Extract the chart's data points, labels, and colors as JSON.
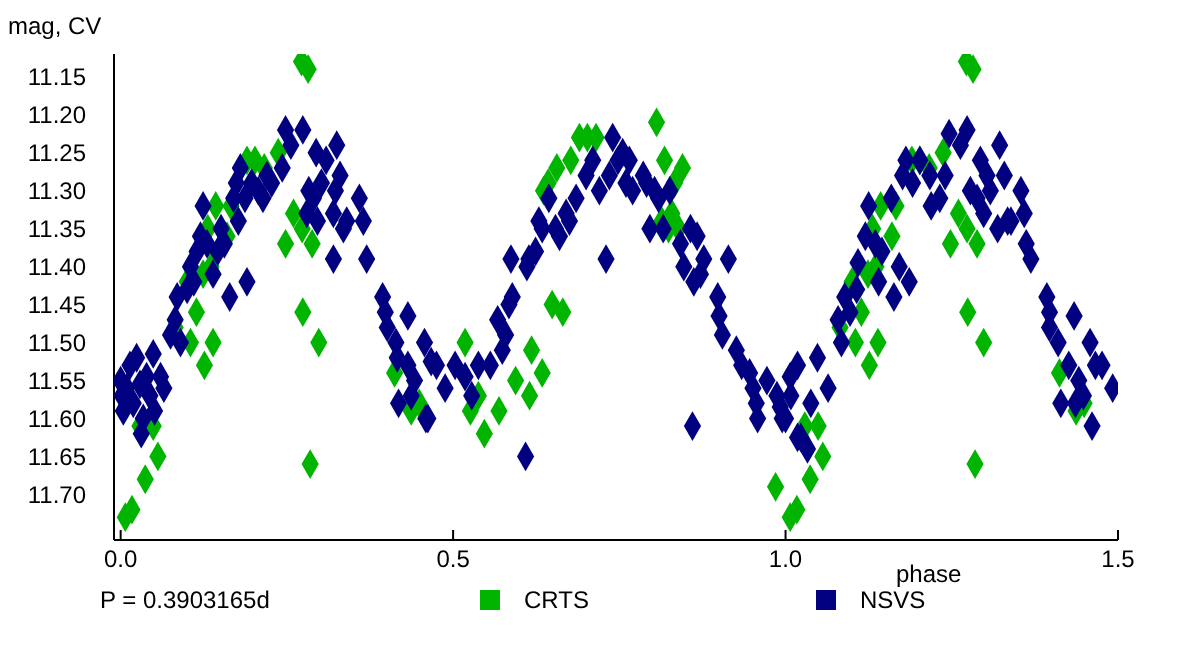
{
  "chart_data": {
    "type": "scatter",
    "xlabel": "phase",
    "ylabel": "mag, CV",
    "annotations": [
      "P = 0.3903165d"
    ],
    "xlim": [
      -0.01,
      1.5
    ],
    "xticks": [
      {
        "value": 0,
        "label": "0.0"
      },
      {
        "value": 0.5,
        "label": "0.5"
      },
      {
        "value": 1,
        "label": "1.0"
      },
      {
        "value": 1.5,
        "label": "1.5"
      }
    ],
    "ylim": [
      11.76,
      11.12
    ],
    "yticks": [
      11.15,
      {
        "value": 11.2,
        "label": "11.20"
      },
      11.25,
      {
        "value": 11.3,
        "label": "11.30"
      },
      11.35,
      {
        "value": 11.4,
        "label": "11.40"
      },
      11.45,
      {
        "value": 11.5,
        "label": "11.50"
      },
      11.55,
      {
        "value": 11.6,
        "label": "11.60"
      },
      11.65,
      {
        "value": 11.7,
        "label": "11.70"
      }
    ],
    "grid": false,
    "legend": "bottom",
    "marker": "diamond",
    "series": [
      {
        "name": "CRTS",
        "color": "#00b400",
        "x": [
          0.007,
          0.017,
          0.029,
          0.037,
          0.049,
          0.056,
          0.082,
          0.1,
          0.105,
          0.114,
          0.126,
          0.124,
          0.131,
          0.136,
          0.139,
          0.143,
          0.16,
          0.166,
          0.19,
          0.202,
          0.216,
          0.237,
          0.248,
          0.26,
          0.272,
          0.282,
          0.273,
          0.274,
          0.285,
          0.288,
          0.298,
          0.412,
          0.437,
          0.449,
          0.518,
          0.538,
          0.526,
          0.547,
          0.569,
          0.594,
          0.615,
          0.618,
          0.634,
          0.649,
          0.665,
          0.636,
          0.643,
          0.656,
          0.677,
          0.69,
          0.702,
          0.715,
          0.806,
          0.818,
          0.833,
          0.845,
          0.829,
          0.814,
          0.824,
          0.839,
          0.985,
          1.007,
          1.017,
          1.029,
          1.037,
          1.049,
          1.056,
          1.082,
          1.1,
          1.105,
          1.114,
          1.126,
          1.124,
          1.131,
          1.136,
          1.139,
          1.143,
          1.16,
          1.166,
          1.19,
          1.202,
          1.216,
          1.237,
          1.248,
          1.26,
          1.272,
          1.282,
          1.273,
          1.274,
          1.285,
          1.288,
          1.298,
          1.412,
          1.437,
          1.449
        ],
        "values": [
          11.73,
          11.72,
          11.61,
          11.68,
          11.61,
          11.65,
          11.48,
          11.42,
          11.5,
          11.46,
          11.53,
          11.41,
          11.35,
          11.4,
          11.5,
          11.32,
          11.36,
          11.32,
          11.26,
          11.26,
          11.27,
          11.25,
          11.37,
          11.33,
          11.13,
          11.14,
          11.35,
          11.46,
          11.66,
          11.37,
          11.5,
          11.54,
          11.59,
          11.58,
          11.5,
          11.57,
          11.59,
          11.62,
          11.59,
          11.55,
          11.57,
          11.51,
          11.54,
          11.45,
          11.46,
          11.3,
          11.29,
          11.27,
          11.26,
          11.23,
          11.23,
          11.23,
          11.21,
          11.26,
          11.29,
          11.27,
          11.33,
          11.34,
          11.35,
          11.35,
          11.69,
          11.73,
          11.72,
          11.61,
          11.68,
          11.61,
          11.65,
          11.48,
          11.42,
          11.5,
          11.46,
          11.53,
          11.41,
          11.35,
          11.4,
          11.5,
          11.32,
          11.36,
          11.32,
          11.26,
          11.26,
          11.27,
          11.25,
          11.37,
          11.33,
          11.13,
          11.14,
          11.35,
          11.46,
          11.66,
          11.37,
          11.5,
          11.54,
          11.59,
          11.58
        ]
      },
      {
        "name": "NSVS",
        "color": "#000080",
        "x": [
          0,
          0.002,
          0.004,
          0.009,
          0.014,
          0.019,
          0.024,
          0.029,
          0.031,
          0.034,
          0.039,
          0.044,
          0.049,
          0.051,
          0.06,
          0.065,
          0.075,
          0.082,
          0.085,
          0.09,
          0.1,
          0.105,
          0.11,
          0.115,
          0.12,
          0.124,
          0.13,
          0.139,
          0.146,
          0.151,
          0.156,
          0.164,
          0.17,
          0.174,
          0.177,
          0.18,
          0.187,
          0.19,
          0.197,
          0.207,
          0.214,
          0.22,
          0.227,
          0.243,
          0.248,
          0.256,
          0.274,
          0.28,
          0.283,
          0.29,
          0.294,
          0.296,
          0.302,
          0.309,
          0.32,
          0.323,
          0.325,
          0.33,
          0.335,
          0.34,
          0.32,
          0.359,
          0.365,
          0.37,
          0.394,
          0.398,
          0.401,
          0.414,
          0.416,
          0.418,
          0.432,
          0.432,
          0.437,
          0.442,
          0.459,
          0.467,
          0.475,
          0.457,
          0.462,
          0.488,
          0.503,
          0.518,
          0.528,
          0.538,
          0.556,
          0.567,
          0.574,
          0.579,
          0.584,
          0.587,
          0.589,
          0.609,
          0.611,
          0.614,
          0.624,
          0.629,
          0.634,
          0.644,
          0.654,
          0.66,
          0.67,
          0.675,
          0.685,
          0.7,
          0.71,
          0.72,
          0.73,
          0.735,
          0.74,
          0.748,
          0.755,
          0.76,
          0.765,
          0.77,
          0.786,
          0.791,
          0.796,
          0.803,
          0.809,
          0.816,
          0.826,
          0.842,
          0.847,
          0.857,
          0.862,
          0.867,
          0.872,
          0.877,
          0.86,
          0.898,
          0.9,
          0.905,
          0.914,
          0.926,
          0.934,
          0.946,
          0.951,
          0.956,
          0.958,
          0.972,
          0.987,
          0.992,
          0.995,
          1.0,
          1.007,
          1.008,
          1.018,
          1.018,
          1.023,
          1.033,
          1.038,
          1.048,
          1.064,
          1.079,
          1.084,
          1.089,
          1.097,
          1.107,
          1.109,
          1.12,
          1.125,
          1.135,
          1.14,
          1.145,
          1.159,
          1.163,
          1.171,
          1.176,
          1.181,
          1.186,
          1.191,
          1.202,
          1.217,
          1.219,
          1.232,
          1.24,
          1.246,
          1.263,
          1.273,
          1.278,
          1.288,
          1.293,
          1.298,
          1.303,
          1.308,
          1.319,
          1.322,
          1.329,
          1.334,
          1.339,
          1.354,
          1.359,
          1.362,
          1.369,
          1.393,
          1.397,
          1.397,
          1.41,
          1.414,
          1.426,
          1.434,
          1.436,
          1.441,
          1.448,
          1.458,
          1.461,
          1.466,
          1.476,
          1.492
        ],
        "values": [
          11.55,
          11.57,
          11.59,
          11.56,
          11.53,
          11.58,
          11.52,
          11.555,
          11.62,
          11.6,
          11.545,
          11.57,
          11.515,
          11.59,
          11.545,
          11.56,
          11.49,
          11.47,
          11.44,
          11.5,
          11.43,
          11.4,
          11.42,
          11.38,
          11.36,
          11.32,
          11.37,
          11.41,
          11.38,
          11.35,
          11.37,
          11.44,
          11.31,
          11.29,
          11.34,
          11.27,
          11.31,
          11.42,
          11.29,
          11.3,
          11.31,
          11.28,
          11.29,
          11.27,
          11.22,
          11.24,
          11.22,
          11.33,
          11.3,
          11.31,
          11.25,
          11.34,
          11.29,
          11.26,
          11.33,
          11.3,
          11.24,
          11.28,
          11.35,
          11.34,
          11.39,
          11.31,
          11.34,
          11.39,
          11.44,
          11.46,
          11.48,
          11.5,
          11.52,
          11.58,
          11.465,
          11.53,
          11.57,
          11.55,
          11.6,
          11.525,
          11.53,
          11.5,
          11.6,
          11.56,
          11.53,
          11.545,
          11.57,
          11.53,
          11.53,
          11.47,
          11.51,
          11.49,
          11.45,
          11.39,
          11.44,
          11.65,
          11.4,
          11.39,
          11.38,
          11.34,
          11.35,
          11.31,
          11.35,
          11.36,
          11.33,
          11.34,
          11.31,
          11.28,
          11.26,
          11.3,
          11.39,
          11.28,
          11.23,
          11.26,
          11.25,
          11.29,
          11.26,
          11.3,
          11.28,
          11.29,
          11.35,
          11.3,
          11.31,
          11.35,
          11.3,
          11.37,
          11.4,
          11.35,
          11.42,
          11.36,
          11.41,
          11.39,
          11.61,
          11.44,
          11.465,
          11.49,
          11.39,
          11.51,
          11.53,
          11.54,
          11.56,
          11.58,
          11.6,
          11.55,
          11.57,
          11.585,
          11.6,
          11.6,
          11.545,
          11.57,
          11.625,
          11.53,
          11.625,
          11.64,
          11.58,
          11.52,
          11.56,
          11.47,
          11.5,
          11.44,
          11.46,
          11.43,
          11.395,
          11.36,
          11.32,
          11.37,
          11.42,
          11.38,
          11.31,
          11.44,
          11.4,
          11.28,
          11.26,
          11.42,
          11.29,
          11.26,
          11.28,
          11.32,
          11.31,
          11.28,
          11.225,
          11.24,
          11.22,
          11.3,
          11.31,
          11.26,
          11.33,
          11.28,
          11.3,
          11.35,
          11.24,
          11.28,
          11.34,
          11.34,
          11.3,
          11.33,
          11.37,
          11.39,
          11.44,
          11.46,
          11.48,
          11.5,
          11.58,
          11.53,
          11.465,
          11.58,
          11.55,
          11.57,
          11.5,
          11.61,
          11.53,
          11.53,
          11.56
        ]
      }
    ]
  }
}
